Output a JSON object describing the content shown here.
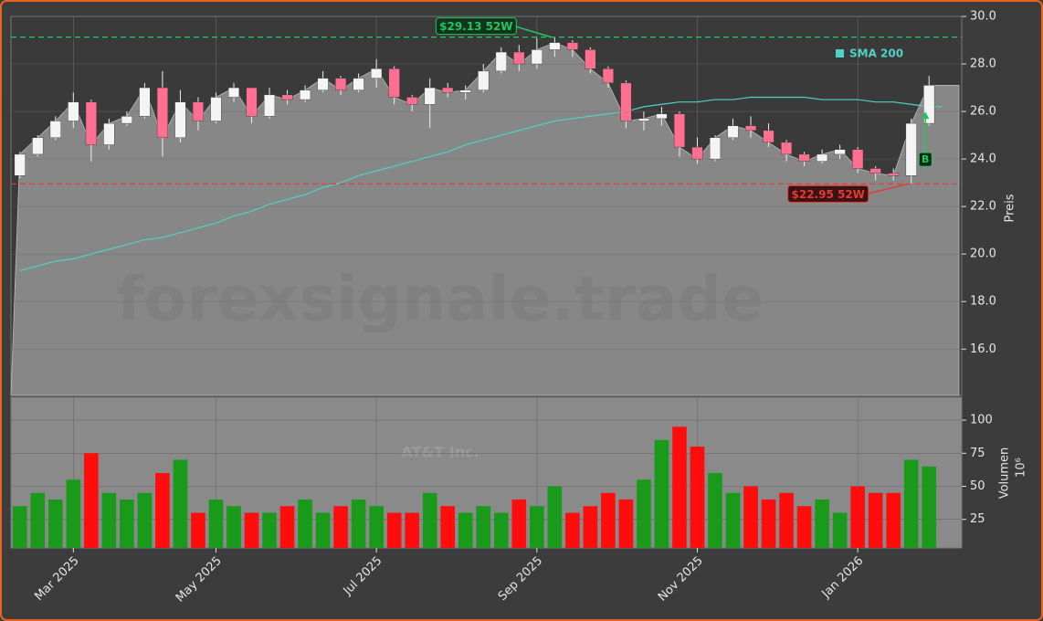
{
  "chart_data": [
    {
      "type": "candlestick",
      "ylabel": "Preis",
      "watermark": "forexsignale.trade",
      "open": [
        23.3,
        24.2,
        24.9,
        25.6,
        26.4,
        24.6,
        25.5,
        25.8,
        27.0,
        24.9,
        26.4,
        25.6,
        26.6,
        27.0,
        25.8,
        26.7,
        26.5,
        26.9,
        27.4,
        26.9,
        27.4,
        27.8,
        26.6,
        26.3,
        27.0,
        26.8,
        26.9,
        27.7,
        28.5,
        28.0,
        28.6,
        28.9,
        28.6,
        27.8,
        27.2,
        25.6,
        25.7,
        25.9,
        24.5,
        24.0,
        24.9,
        25.4,
        25.2,
        24.7,
        24.2,
        23.9,
        24.2,
        24.4,
        23.6,
        23.4,
        23.3,
        25.5
      ],
      "high": [
        24.3,
        25.0,
        25.8,
        26.8,
        26.5,
        25.7,
        26.0,
        27.2,
        27.7,
        26.9,
        26.6,
        26.8,
        27.2,
        27.0,
        27.0,
        26.9,
        27.1,
        27.7,
        27.5,
        27.6,
        28.2,
        27.9,
        26.7,
        27.4,
        27.2,
        27.1,
        28.0,
        28.7,
        28.8,
        29.1,
        29.13,
        29.0,
        28.7,
        27.9,
        27.3,
        26.0,
        26.2,
        26.0,
        24.9,
        25.0,
        25.7,
        25.8,
        25.5,
        24.8,
        24.3,
        24.4,
        24.6,
        24.5,
        23.7,
        23.6,
        25.7,
        27.5
      ],
      "low": [
        23.2,
        24.1,
        24.8,
        25.3,
        23.9,
        24.4,
        25.4,
        25.7,
        24.1,
        24.7,
        25.2,
        25.5,
        26.4,
        25.5,
        25.7,
        26.3,
        26.4,
        26.8,
        26.7,
        26.8,
        27.0,
        26.3,
        26.0,
        25.3,
        26.6,
        26.5,
        26.8,
        27.6,
        27.7,
        27.8,
        28.3,
        28.3,
        27.6,
        27.0,
        25.3,
        25.2,
        25.4,
        24.1,
        23.8,
        23.9,
        24.8,
        24.9,
        24.5,
        23.9,
        23.7,
        23.8,
        24.0,
        23.4,
        23.1,
        23.1,
        22.95,
        25.4
      ],
      "close": [
        24.2,
        24.9,
        25.6,
        26.4,
        24.6,
        25.5,
        25.8,
        27.0,
        24.9,
        26.4,
        25.6,
        26.6,
        27.0,
        25.8,
        26.7,
        26.5,
        26.9,
        27.4,
        26.9,
        27.4,
        27.8,
        26.6,
        26.3,
        27.0,
        26.8,
        26.9,
        27.7,
        28.5,
        28.0,
        28.6,
        28.9,
        28.6,
        27.8,
        27.2,
        25.6,
        25.7,
        25.9,
        24.5,
        24.0,
        24.9,
        25.4,
        25.2,
        24.7,
        24.2,
        23.9,
        24.2,
        24.4,
        23.6,
        23.4,
        23.3,
        25.5,
        27.1
      ],
      "up_color": "#f4f4f4",
      "down_color": "#ff6f8f",
      "area_color": "#878787",
      "series": [
        {
          "name": "SMA 200",
          "color": "#4fd1c5",
          "values": [
            19.3,
            19.5,
            19.7,
            19.8,
            20.0,
            20.2,
            20.4,
            20.6,
            20.7,
            20.9,
            21.1,
            21.3,
            21.6,
            21.8,
            22.1,
            22.3,
            22.5,
            22.8,
            23.0,
            23.3,
            23.5,
            23.7,
            23.9,
            24.1,
            24.3,
            24.6,
            24.8,
            25.0,
            25.2,
            25.4,
            25.6,
            25.7,
            25.8,
            25.9,
            26.0,
            26.2,
            26.3,
            26.4,
            26.4,
            26.5,
            26.5,
            26.6,
            26.6,
            26.6,
            26.6,
            26.5,
            26.5,
            26.5,
            26.4,
            26.4,
            26.3,
            26.2
          ]
        }
      ],
      "annotations": [
        {
          "text": "$29.13 52W",
          "value": 29.13,
          "index": 30,
          "color": "#22c55e"
        },
        {
          "text": "$22.95 52W",
          "value": 22.95,
          "index": 50,
          "color": "#e53935"
        }
      ],
      "signals": [
        {
          "text": "B",
          "value": 26.0,
          "index": 51,
          "color": "#22c55e"
        }
      ],
      "ylim": [
        14.05,
        30
      ],
      "yticks": [
        {
          "value": 16,
          "label": "16.0"
        },
        {
          "value": 18,
          "label": "18.0"
        },
        {
          "value": 20,
          "label": "20.0"
        },
        {
          "value": 22,
          "label": "22.0"
        },
        {
          "value": 24,
          "label": "24.0"
        },
        {
          "value": 26,
          "label": "26.0"
        },
        {
          "value": 28,
          "label": "28.0"
        },
        {
          "value": 30,
          "label": "30.0"
        }
      ],
      "grid": true
    },
    {
      "type": "bar",
      "ylabel": "Volumen",
      "yunit": "10⁶",
      "logo_text": "AT&T Inc.",
      "categories": [
        null,
        null,
        null,
        "Mar 2025",
        null,
        null,
        null,
        null,
        null,
        null,
        null,
        "May 2025",
        null,
        null,
        null,
        null,
        null,
        null,
        null,
        null,
        "Jul 2025",
        null,
        null,
        null,
        null,
        null,
        null,
        null,
        null,
        "Sep 2025",
        null,
        null,
        null,
        null,
        null,
        null,
        null,
        null,
        "Nov 2025",
        null,
        null,
        null,
        null,
        null,
        null,
        null,
        null,
        "Jan 2026",
        null,
        null,
        null,
        null
      ],
      "values": [
        35,
        45,
        40,
        55,
        75,
        45,
        40,
        45,
        60,
        70,
        30,
        40,
        35,
        30,
        30,
        35,
        40,
        30,
        35,
        40,
        35,
        30,
        30,
        45,
        35,
        30,
        35,
        30,
        40,
        35,
        50,
        30,
        35,
        45,
        40,
        55,
        85,
        95,
        80,
        60,
        45,
        50,
        40,
        45,
        35,
        40,
        30,
        50,
        45,
        45,
        70,
        65
      ],
      "up_color": "#1a9a1a",
      "down_color": "#ff0d0d",
      "ylim": [
        3.4,
        117.3
      ],
      "yticks": [
        25,
        50,
        75,
        100
      ],
      "grid": true
    }
  ]
}
